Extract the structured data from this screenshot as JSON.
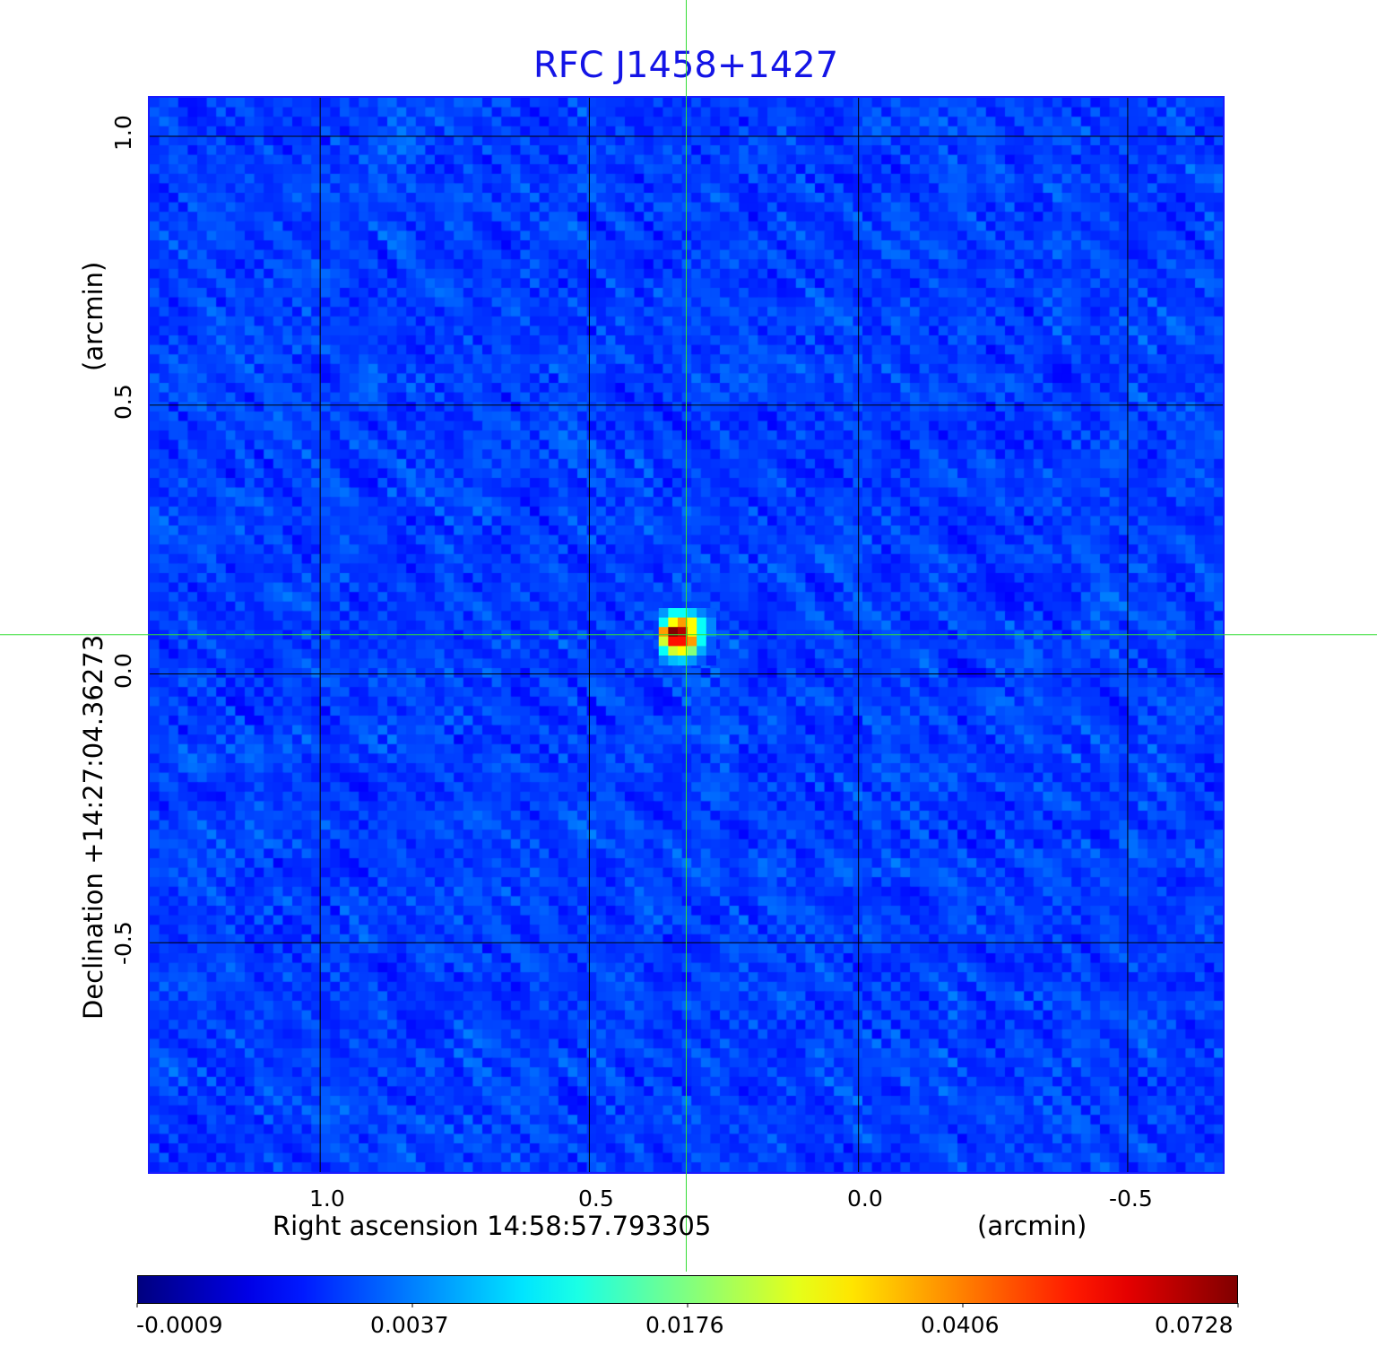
{
  "chart_data": {
    "type": "heatmap",
    "title": "RFC J1458+1427",
    "xlabel": "Right ascension  14:58:57.793305",
    "xunit": "(arcmin)",
    "ylabel": "Declination  +14:27:04.36273",
    "yunit": "(arcmin)",
    "xlim": [
      1.32,
      -0.68
    ],
    "ylim": [
      -0.93,
      1.075
    ],
    "xticks": [
      1.0,
      0.5,
      0.0,
      -0.5
    ],
    "xtick_labels": [
      "1.0",
      "0.5",
      "0.0",
      "-0.5"
    ],
    "yticks": [
      1.0,
      0.5,
      0.0,
      -0.5
    ],
    "ytick_labels": [
      "1.0",
      "0.5",
      "0.0",
      "-0.5"
    ],
    "grid": true,
    "colormap": "jet",
    "colorbar": {
      "placement": "bottom",
      "ticks": [
        -0.0009,
        0.0037,
        0.0176,
        0.0406,
        0.0728
      ],
      "tick_labels": [
        "-0.0009",
        "0.0037",
        "0.0176",
        "0.0406",
        "0.0728"
      ]
    },
    "crosshair": {
      "x": 0.32,
      "y": 0.073,
      "color": "#33dd33"
    },
    "background_level": 0.0025,
    "source": {
      "peak": 0.0728,
      "pixels": [
        [
          0.005,
          0.011,
          0.011,
          0.008,
          0.004,
          0.003
        ],
        [
          0.011,
          0.029,
          0.038,
          0.029,
          0.011,
          0.004
        ],
        [
          0.038,
          0.0728,
          0.066,
          0.029,
          0.011,
          0.004
        ],
        [
          0.025,
          0.055,
          0.055,
          0.038,
          0.011,
          0.003
        ],
        [
          0.011,
          0.025,
          0.029,
          0.018,
          0.006,
          0.003
        ],
        [
          0.004,
          0.007,
          0.008,
          0.005,
          0.003,
          0.002
        ]
      ]
    }
  },
  "colors": {
    "title": "#1414e6",
    "frame": "#1a1aff",
    "grid": "#000000",
    "crosshair": "#33dd33"
  }
}
